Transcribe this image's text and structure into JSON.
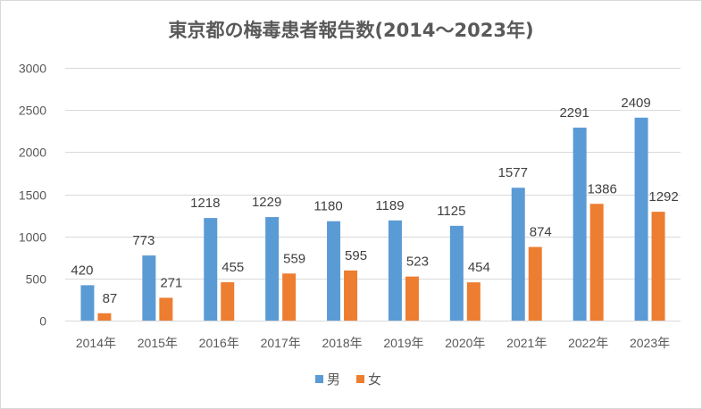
{
  "chart_data": {
    "type": "bar",
    "title": "東京都の梅毒患者報告数(2014～2023年)",
    "categories": [
      "2014年",
      "2015年",
      "2016年",
      "2017年",
      "2018年",
      "2019年",
      "2020年",
      "2021年",
      "2022年",
      "2023年"
    ],
    "series": [
      {
        "name": "男",
        "color": "#5b9bd5",
        "values": [
          420,
          773,
          1218,
          1229,
          1180,
          1189,
          1125,
          1577,
          2291,
          2409
        ]
      },
      {
        "name": "女",
        "color": "#ed7d31",
        "values": [
          87,
          271,
          455,
          559,
          595,
          523,
          454,
          874,
          1386,
          1292
        ]
      }
    ],
    "ylim": [
      0,
      3000
    ],
    "yticks": [
      0,
      500,
      1000,
      1500,
      2000,
      2500,
      3000
    ],
    "grid": true,
    "legend": "bottom",
    "xlabel": "",
    "ylabel": ""
  }
}
